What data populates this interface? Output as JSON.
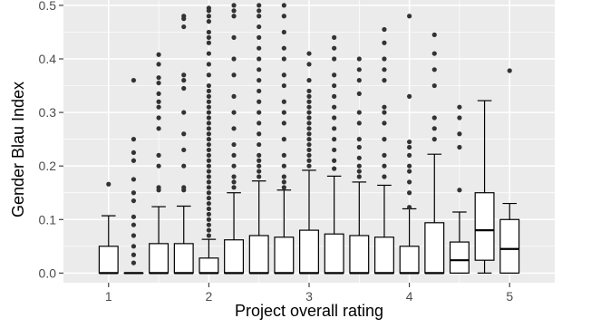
{
  "chart_data": {
    "type": "boxplot",
    "title": "",
    "xlabel": "Project overall rating",
    "ylabel": "Gender Blau Index",
    "xlim": [
      0.55,
      5.45
    ],
    "ylim": [
      -0.018,
      0.51
    ],
    "x_ticks": [
      1,
      2,
      3,
      4,
      5
    ],
    "x_tick_labels": [
      "1",
      "2",
      "3",
      "4",
      "5"
    ],
    "y_ticks": [
      0.0,
      0.1,
      0.2,
      0.3,
      0.4,
      0.5
    ],
    "y_tick_labels": [
      "0.0",
      "0.1",
      "0.2",
      "0.3",
      "0.4",
      "0.5"
    ],
    "grid": true,
    "background": "#ebebeb",
    "gridline_color": "#ffffff",
    "box_fill": "#ffffff",
    "box_stroke": "#000000",
    "outlier_color": "#333333",
    "boxes": [
      {
        "x": 1.0,
        "q1": 0.0,
        "median": 0.0,
        "q3": 0.05,
        "whisker_low": 0.0,
        "whisker_high": 0.107,
        "outliers": [
          0.166
        ]
      },
      {
        "x": 1.25,
        "q1": 0.0,
        "median": 0.0,
        "q3": 0.0,
        "whisker_low": 0.0,
        "whisker_high": 0.0,
        "outliers": [
          0.019,
          0.034,
          0.05,
          0.07,
          0.09,
          0.105,
          0.135,
          0.15,
          0.175,
          0.21,
          0.225,
          0.25,
          0.36
        ]
      },
      {
        "x": 1.5,
        "q1": 0.0,
        "median": 0.0,
        "q3": 0.055,
        "whisker_low": 0.0,
        "whisker_high": 0.124,
        "outliers": [
          0.155,
          0.16,
          0.2,
          0.22,
          0.27,
          0.29,
          0.31,
          0.32,
          0.335,
          0.355,
          0.365,
          0.39,
          0.408
        ]
      },
      {
        "x": 1.75,
        "q1": 0.0,
        "median": 0.0,
        "q3": 0.055,
        "whisker_low": 0.0,
        "whisker_high": 0.125,
        "outliers": [
          0.155,
          0.16,
          0.2,
          0.23,
          0.26,
          0.3,
          0.345,
          0.36,
          0.37,
          0.46,
          0.475,
          0.48
        ]
      },
      {
        "x": 2.0,
        "q1": 0.0,
        "median": 0.0,
        "q3": 0.028,
        "whisker_low": 0.0,
        "whisker_high": 0.063,
        "outliers": [
          0.07,
          0.08,
          0.09,
          0.1,
          0.11,
          0.12,
          0.13,
          0.14,
          0.15,
          0.16,
          0.17,
          0.18,
          0.19,
          0.2,
          0.21,
          0.22,
          0.23,
          0.24,
          0.25,
          0.26,
          0.27,
          0.28,
          0.29,
          0.3,
          0.31,
          0.32,
          0.33,
          0.34,
          0.35,
          0.37,
          0.39,
          0.41,
          0.43,
          0.44,
          0.45,
          0.47,
          0.48,
          0.49,
          0.495
        ]
      },
      {
        "x": 2.25,
        "q1": 0.0,
        "median": 0.0,
        "q3": 0.062,
        "whisker_low": 0.0,
        "whisker_high": 0.15,
        "outliers": [
          0.16,
          0.17,
          0.18,
          0.2,
          0.22,
          0.24,
          0.27,
          0.3,
          0.33,
          0.37,
          0.4,
          0.44,
          0.48,
          0.49,
          0.5
        ]
      },
      {
        "x": 2.5,
        "q1": 0.0,
        "median": 0.0,
        "q3": 0.07,
        "whisker_low": 0.0,
        "whisker_high": 0.172,
        "outliers": [
          0.18,
          0.19,
          0.2,
          0.21,
          0.22,
          0.24,
          0.26,
          0.28,
          0.3,
          0.32,
          0.34,
          0.36,
          0.38,
          0.4,
          0.42,
          0.44,
          0.46,
          0.48,
          0.49,
          0.5
        ]
      },
      {
        "x": 2.75,
        "q1": 0.0,
        "median": 0.0,
        "q3": 0.067,
        "whisker_low": 0.0,
        "whisker_high": 0.155,
        "outliers": [
          0.16,
          0.17,
          0.18,
          0.2,
          0.22,
          0.25,
          0.28,
          0.3,
          0.32,
          0.35,
          0.37,
          0.4,
          0.42,
          0.45,
          0.48,
          0.5
        ]
      },
      {
        "x": 3.0,
        "q1": 0.0,
        "median": 0.0,
        "q3": 0.08,
        "whisker_low": 0.0,
        "whisker_high": 0.192,
        "outliers": [
          0.2,
          0.21,
          0.22,
          0.23,
          0.24,
          0.25,
          0.26,
          0.27,
          0.28,
          0.29,
          0.3,
          0.31,
          0.32,
          0.33,
          0.34,
          0.36,
          0.39,
          0.41
        ]
      },
      {
        "x": 3.25,
        "q1": 0.0,
        "median": 0.0,
        "q3": 0.073,
        "whisker_low": 0.0,
        "whisker_high": 0.181,
        "outliers": [
          0.195,
          0.21,
          0.23,
          0.25,
          0.27,
          0.29,
          0.31,
          0.33,
          0.35,
          0.37,
          0.4,
          0.42,
          0.44
        ]
      },
      {
        "x": 3.5,
        "q1": 0.0,
        "median": 0.0,
        "q3": 0.07,
        "whisker_low": 0.0,
        "whisker_high": 0.17,
        "outliers": [
          0.18,
          0.19,
          0.2,
          0.215,
          0.235,
          0.25,
          0.28,
          0.3,
          0.335,
          0.36,
          0.38,
          0.4
        ]
      },
      {
        "x": 3.75,
        "q1": 0.0,
        "median": 0.0,
        "q3": 0.067,
        "whisker_low": 0.0,
        "whisker_high": 0.164,
        "outliers": [
          0.18,
          0.2,
          0.22,
          0.25,
          0.28,
          0.3,
          0.31,
          0.36,
          0.38,
          0.4,
          0.43,
          0.455
        ]
      },
      {
        "x": 4.0,
        "q1": 0.0,
        "median": 0.0,
        "q3": 0.05,
        "whisker_low": 0.0,
        "whisker_high": 0.12,
        "outliers": [
          0.123,
          0.15,
          0.17,
          0.19,
          0.2,
          0.22,
          0.235,
          0.245,
          0.33,
          0.48
        ]
      },
      {
        "x": 4.25,
        "q1": 0.0,
        "median": 0.0,
        "q3": 0.094,
        "whisker_low": 0.0,
        "whisker_high": 0.222,
        "outliers": [
          0.25,
          0.27,
          0.29,
          0.35,
          0.38,
          0.41,
          0.445
        ]
      },
      {
        "x": 4.5,
        "q1": 0.0,
        "median": 0.024,
        "q3": 0.058,
        "whisker_low": 0.0,
        "whisker_high": 0.114,
        "outliers": [
          0.155,
          0.235,
          0.26,
          0.29,
          0.31
        ]
      },
      {
        "x": 4.75,
        "q1": 0.024,
        "median": 0.08,
        "q3": 0.15,
        "whisker_low": 0.0,
        "whisker_high": 0.322,
        "outliers": []
      },
      {
        "x": 5.0,
        "q1": 0.0,
        "median": 0.045,
        "q3": 0.1,
        "whisker_low": 0.0,
        "whisker_high": 0.13,
        "outliers": [
          0.378
        ]
      }
    ]
  }
}
